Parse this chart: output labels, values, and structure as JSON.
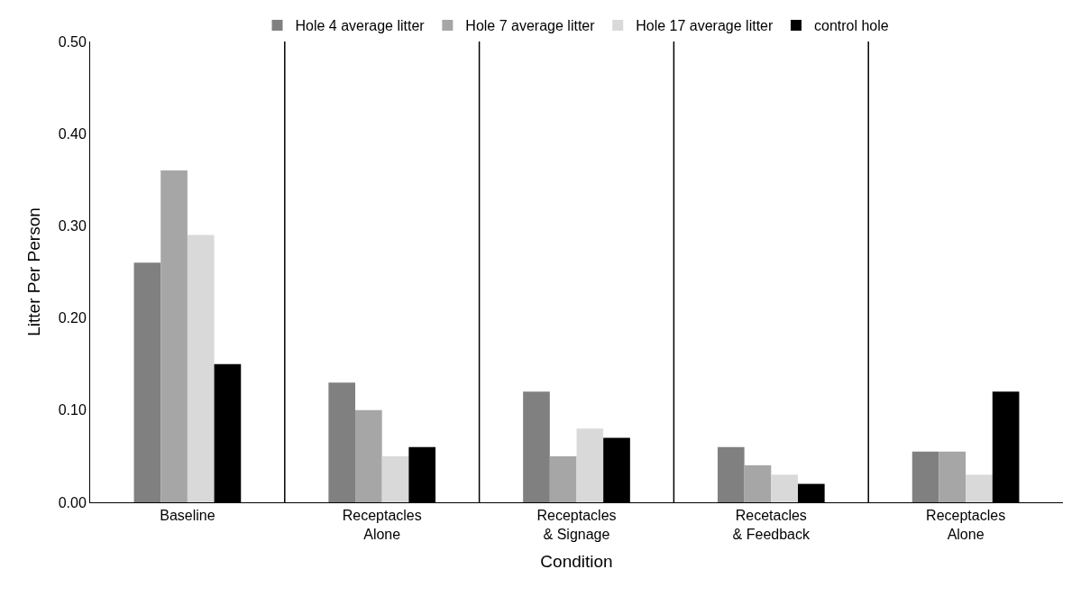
{
  "chart_data": {
    "type": "bar",
    "xlabel": "Condition",
    "ylabel": "Litter Per Person",
    "categories": [
      "Baseline",
      "Receptacles\nAlone",
      "Receptacles\n& Signage",
      "Recetacles\n& Feedback",
      "Receptacles\nAlone"
    ],
    "series": [
      {
        "name": "Hole 4 average litter",
        "color": "#808080",
        "values": [
          0.26,
          0.13,
          0.12,
          0.06,
          0.055
        ]
      },
      {
        "name": "Hole 7 average litter",
        "color": "#a6a6a6",
        "values": [
          0.36,
          0.1,
          0.05,
          0.04,
          0.055
        ]
      },
      {
        "name": "Hole 17 average litter",
        "color": "#d9d9d9",
        "values": [
          0.29,
          0.05,
          0.08,
          0.03,
          0.03
        ]
      },
      {
        "name": "control hole",
        "color": "#000000",
        "values": [
          0.15,
          0.06,
          0.07,
          0.02,
          0.12
        ]
      }
    ],
    "ylim": [
      0,
      0.5
    ],
    "yticks": [
      {
        "value": 0,
        "label": "0.00"
      },
      {
        "value": 0.1,
        "label": "0.10"
      },
      {
        "value": 0.2,
        "label": "0.20"
      },
      {
        "value": 0.3,
        "label": "0.30"
      },
      {
        "value": 0.4,
        "label": "0.40"
      },
      {
        "value": 0.5,
        "label": "0.50"
      }
    ],
    "legend": "top"
  }
}
